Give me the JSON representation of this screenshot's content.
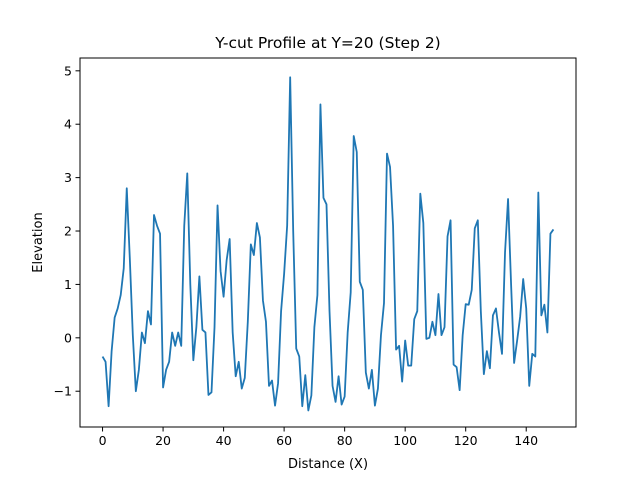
{
  "chart_data": {
    "type": "line",
    "title": "Y-cut Profile at Y=20 (Step 2)",
    "xlabel": "Distance (X)",
    "ylabel": "Elevation",
    "xlim": [
      -7.45,
      156.45
    ],
    "ylim": [
      -1.67,
      5.24
    ],
    "xticks": [
      0,
      20,
      40,
      60,
      80,
      100,
      120,
      140
    ],
    "yticks": [
      -1,
      0,
      1,
      2,
      3,
      4,
      5
    ],
    "grid": false,
    "legend": "none",
    "colors": {
      "line": "#1f77b4",
      "axes": "#000000",
      "background": "#ffffff"
    },
    "series": [
      {
        "values": [
          -0.35,
          -0.45,
          -1.28,
          -0.25,
          0.38,
          0.55,
          0.8,
          1.3,
          2.8,
          1.5,
          0.05,
          -1.0,
          -0.6,
          0.1,
          -0.1,
          0.5,
          0.25,
          2.3,
          2.1,
          1.95,
          -0.93,
          -0.6,
          -0.45,
          0.1,
          -0.15,
          0.1,
          -0.15,
          2.1,
          3.08,
          1.0,
          -0.42,
          0.2,
          1.15,
          0.15,
          0.1,
          -1.07,
          -1.02,
          0.2,
          2.48,
          1.25,
          0.77,
          1.45,
          1.85,
          0.1,
          -0.72,
          -0.45,
          -0.95,
          -0.75,
          0.3,
          1.75,
          1.55,
          2.15,
          1.88,
          0.7,
          0.3,
          -0.9,
          -0.8,
          -1.27,
          -0.85,
          0.5,
          1.2,
          2.1,
          4.88,
          2.0,
          -0.2,
          -0.35,
          -1.28,
          -0.7,
          -1.36,
          -1.08,
          0.2,
          0.8,
          4.37,
          2.62,
          2.5,
          0.5,
          -0.9,
          -1.2,
          -0.72,
          -1.25,
          -1.1,
          0.1,
          0.85,
          3.78,
          3.48,
          1.05,
          0.9,
          -0.65,
          -0.95,
          -0.6,
          -1.27,
          -0.95,
          0.05,
          0.65,
          3.45,
          3.2,
          2.1,
          -0.22,
          -0.15,
          -0.82,
          -0.05,
          -0.52,
          -0.52,
          0.35,
          0.5,
          2.7,
          2.15,
          -0.02,
          0.0,
          0.3,
          0.05,
          0.82,
          0.05,
          0.2,
          1.9,
          2.2,
          -0.5,
          -0.55,
          -0.98,
          0.05,
          0.63,
          0.62,
          0.9,
          2.05,
          2.2,
          0.5,
          -0.68,
          -0.25,
          -0.57,
          0.42,
          0.55,
          0.1,
          -0.3,
          1.6,
          2.6,
          1.0,
          -0.47,
          -0.05,
          0.4,
          1.1,
          0.55,
          -0.9,
          -0.3,
          -0.35,
          2.72,
          0.42,
          0.62,
          0.1,
          1.95,
          2.03
        ]
      }
    ]
  }
}
